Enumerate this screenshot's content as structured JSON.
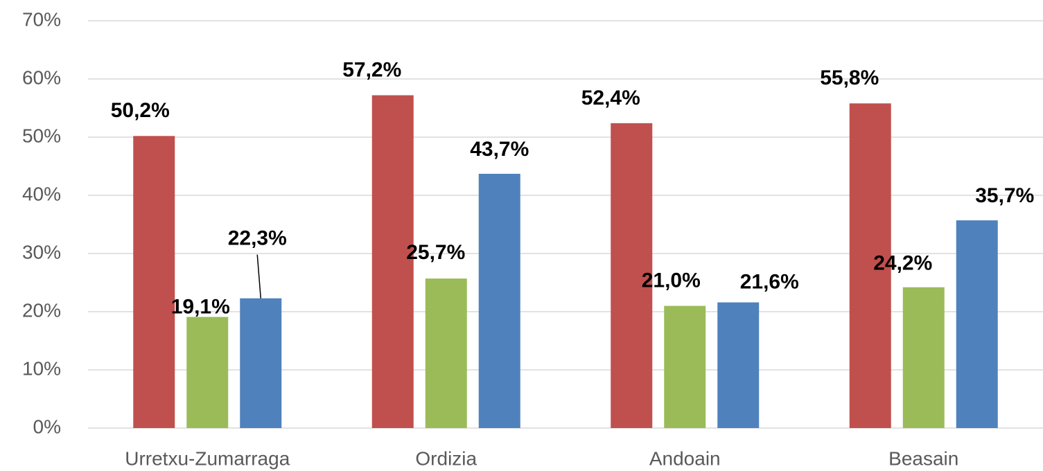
{
  "chart_data": {
    "type": "bar",
    "categories": [
      "Urretxu-Zumarraga",
      "Ordizia",
      "Andoain",
      "Beasain"
    ],
    "series": [
      {
        "color": "#c0504d",
        "values": [
          50.2,
          57.2,
          52.4,
          55.8
        ],
        "value_labels": [
          "50,2%",
          "57,2%",
          "52,4%",
          "55,8%"
        ]
      },
      {
        "color": "#9bbb59",
        "values": [
          19.1,
          25.7,
          21.0,
          24.2
        ],
        "value_labels": [
          "19,1%",
          "25,7%",
          "21,0%",
          "24,2%"
        ]
      },
      {
        "color": "#4f81bd",
        "values": [
          22.3,
          43.7,
          21.6,
          35.7
        ],
        "value_labels": [
          "22,3%",
          "43,7%",
          "21,6%",
          "35,7%"
        ]
      }
    ],
    "ylim": [
      0,
      70
    ],
    "yticks": [
      {
        "value": 0,
        "label": "0%"
      },
      {
        "value": 10,
        "label": "10%"
      },
      {
        "value": 20,
        "label": "20%"
      },
      {
        "value": 30,
        "label": "30%"
      },
      {
        "value": 40,
        "label": "40%"
      },
      {
        "value": 50,
        "label": "50%"
      },
      {
        "value": 60,
        "label": "60%"
      },
      {
        "value": 70,
        "label": "70%"
      }
    ],
    "grid": true
  }
}
